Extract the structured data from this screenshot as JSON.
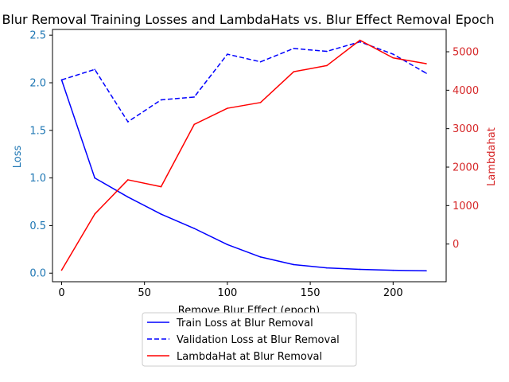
{
  "chart_data": {
    "type": "line",
    "title": "Blur Removal Training Losses and LambdaHats vs. Blur Effect Removal Epoch",
    "xlabel": "Remove Blur Effect (epoch)",
    "ylabel_left": "Loss",
    "ylabel_right": "Lambdahat",
    "x": [
      0,
      20,
      40,
      60,
      80,
      100,
      120,
      140,
      160,
      180,
      200,
      220
    ],
    "xlim": [
      -5.5,
      232
    ],
    "xticks": [
      0,
      50,
      100,
      150,
      200
    ],
    "ylim_left": [
      -0.09,
      2.56
    ],
    "yticks_left": [
      "0.0",
      "0.5",
      "1.0",
      "1.5",
      "2.0",
      "2.5"
    ],
    "ylim_right": [
      -980,
      5580
    ],
    "yticks_right": [
      "0",
      "1000",
      "2000",
      "3000",
      "4000",
      "5000"
    ],
    "left_axis_color": "#1f77b4",
    "right_axis_color": "#d62728",
    "series": [
      {
        "name": "Train Loss at Blur Removal",
        "axis": "left",
        "color": "#0000ff",
        "dash": "solid",
        "values": [
          2.03,
          1.0,
          0.8,
          0.62,
          0.47,
          0.3,
          0.17,
          0.09,
          0.055,
          0.04,
          0.03,
          0.025
        ]
      },
      {
        "name": "Validation Loss at Blur Removal",
        "axis": "left",
        "color": "#0000ff",
        "dash": "dashed",
        "values": [
          2.03,
          2.14,
          1.59,
          1.82,
          1.85,
          2.3,
          2.22,
          2.36,
          2.33,
          2.43,
          2.3,
          2.1
        ]
      },
      {
        "name": "LambdaHat at Blur Removal",
        "axis": "right",
        "color": "#ff0000",
        "dash": "solid",
        "values": [
          -680,
          780,
          1670,
          1490,
          3110,
          3530,
          3680,
          4480,
          4640,
          5300,
          4840,
          4690
        ]
      }
    ],
    "legend_position": "below"
  }
}
